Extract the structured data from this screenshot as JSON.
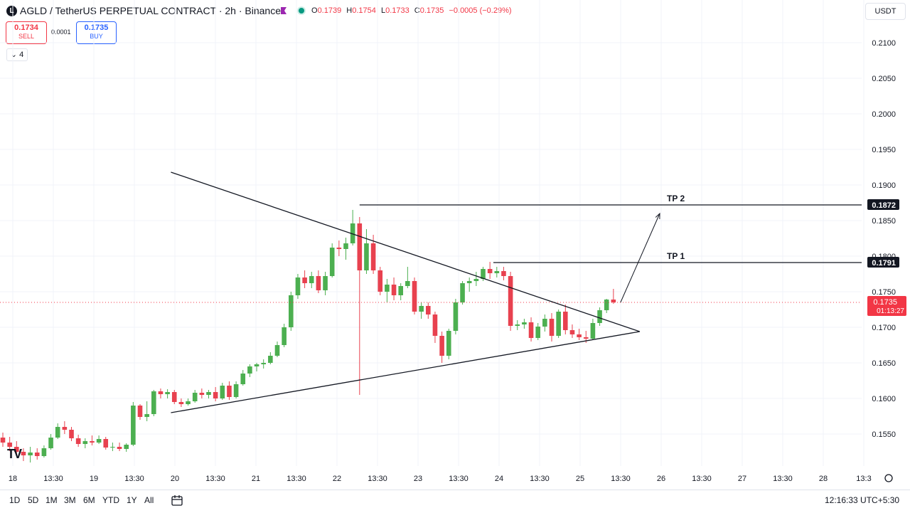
{
  "header": {
    "logo_letter": "L",
    "title": "AGLD / TetherUS PERPETUAL CONTRACT · 2h · Binance",
    "ohlc": [
      {
        "k": "O",
        "v": "0.1739"
      },
      {
        "k": "H",
        "v": "0.1754"
      },
      {
        "k": "L",
        "v": "0.1733"
      },
      {
        "k": "C",
        "v": "0.1735"
      },
      {
        "k": "",
        "v": "−0.0005 (−0.29%)"
      }
    ],
    "currency": "USDT"
  },
  "trade": {
    "sell_price": "0.1734",
    "sell_label": "SELL",
    "spread": "0.0001",
    "buy_price": "0.1735",
    "buy_label": "BUY"
  },
  "indicator_toggle": "4",
  "bottom": {
    "ranges": [
      "1D",
      "5D",
      "1M",
      "3M",
      "6M",
      "YTD",
      "1Y",
      "All"
    ],
    "clock": "12:16:33 UTC+5:30"
  },
  "colors": {
    "up": "#4caf50",
    "down": "#e8414f",
    "price_label": "#f23645",
    "text": "#131722",
    "grid": "#f0f3fa"
  },
  "chart_data": {
    "type": "candlestick",
    "symbol": "AGLD / TetherUS PERPETUAL CONTRACT",
    "interval": "2h",
    "exchange": "Binance",
    "y_ticks": [
      "0.1550",
      "0.1600",
      "0.1650",
      "0.1700",
      "0.1750",
      "0.1800",
      "0.1850",
      "0.1900",
      "0.1950",
      "0.2000",
      "0.2050",
      "0.2100"
    ],
    "x_tick_labels": [
      "18",
      "13:30",
      "19",
      "13:30",
      "20",
      "13:30",
      "21",
      "13:30",
      "22",
      "13:30",
      "23",
      "13:30",
      "24",
      "13:30",
      "25",
      "13:30",
      "26",
      "13:30",
      "27",
      "13:30",
      "28",
      "13:3"
    ],
    "ylim": [
      0.1505,
      0.2125
    ],
    "candles": [
      [
        0.1545,
        0.1552,
        0.1532,
        0.1538
      ],
      [
        0.1538,
        0.1546,
        0.1526,
        0.1532
      ],
      [
        0.1532,
        0.154,
        0.152,
        0.1525
      ],
      [
        0.1525,
        0.153,
        0.1512,
        0.152
      ],
      [
        0.152,
        0.1532,
        0.151,
        0.1524
      ],
      [
        0.1524,
        0.153,
        0.1514,
        0.1519
      ],
      [
        0.1519,
        0.1534,
        0.1517,
        0.153
      ],
      [
        0.153,
        0.155,
        0.1528,
        0.1545
      ],
      [
        0.1545,
        0.1565,
        0.1543,
        0.156
      ],
      [
        0.156,
        0.1568,
        0.155,
        0.1556
      ],
      [
        0.1556,
        0.156,
        0.154,
        0.1544
      ],
      [
        0.1544,
        0.1549,
        0.1532,
        0.1536
      ],
      [
        0.1536,
        0.1544,
        0.153,
        0.154
      ],
      [
        0.154,
        0.1548,
        0.1534,
        0.1538
      ],
      [
        0.1538,
        0.1548,
        0.1536,
        0.1543
      ],
      [
        0.1543,
        0.1546,
        0.1528,
        0.1531
      ],
      [
        0.1531,
        0.1538,
        0.1526,
        0.1532
      ],
      [
        0.1532,
        0.1538,
        0.1526,
        0.1529
      ],
      [
        0.1529,
        0.1537,
        0.1525,
        0.1535
      ],
      [
        0.1535,
        0.1595,
        0.1533,
        0.159
      ],
      [
        0.159,
        0.1592,
        0.157,
        0.1574
      ],
      [
        0.1574,
        0.1596,
        0.1568,
        0.1578
      ],
      [
        0.1578,
        0.1612,
        0.1575,
        0.161
      ],
      [
        0.161,
        0.1614,
        0.16,
        0.1606
      ],
      [
        0.1606,
        0.1613,
        0.16,
        0.1609
      ],
      [
        0.1609,
        0.1612,
        0.1592,
        0.1595
      ],
      [
        0.1595,
        0.16,
        0.1588,
        0.1592
      ],
      [
        0.1592,
        0.16,
        0.159,
        0.1596
      ],
      [
        0.1596,
        0.1612,
        0.1594,
        0.1608
      ],
      [
        0.1608,
        0.1614,
        0.16,
        0.1605
      ],
      [
        0.1605,
        0.1612,
        0.16,
        0.1609
      ],
      [
        0.1609,
        0.1616,
        0.1596,
        0.16
      ],
      [
        0.16,
        0.1622,
        0.1598,
        0.1618
      ],
      [
        0.1618,
        0.1624,
        0.1598,
        0.1602
      ],
      [
        0.1602,
        0.1624,
        0.16,
        0.162
      ],
      [
        0.162,
        0.164,
        0.1618,
        0.1635
      ],
      [
        0.1635,
        0.1648,
        0.163,
        0.1645
      ],
      [
        0.1645,
        0.165,
        0.1638,
        0.1648
      ],
      [
        0.1648,
        0.1655,
        0.1642,
        0.165
      ],
      [
        0.165,
        0.1665,
        0.1648,
        0.166
      ],
      [
        0.166,
        0.168,
        0.1658,
        0.1675
      ],
      [
        0.1675,
        0.1705,
        0.1672,
        0.17
      ],
      [
        0.17,
        0.175,
        0.1695,
        0.1745
      ],
      [
        0.1745,
        0.1775,
        0.174,
        0.177
      ],
      [
        0.177,
        0.178,
        0.1755,
        0.1762
      ],
      [
        0.1762,
        0.1778,
        0.1755,
        0.1772
      ],
      [
        0.1772,
        0.178,
        0.1748,
        0.1752
      ],
      [
        0.1752,
        0.1778,
        0.1745,
        0.1772
      ],
      [
        0.1772,
        0.1818,
        0.177,
        0.1812
      ],
      [
        0.1812,
        0.1822,
        0.18,
        0.181
      ],
      [
        0.181,
        0.1826,
        0.1795,
        0.1818
      ],
      [
        0.1818,
        0.1865,
        0.1815,
        0.1846
      ],
      [
        0.1846,
        0.1855,
        0.1605,
        0.178
      ],
      [
        0.178,
        0.1838,
        0.1775,
        0.1818
      ],
      [
        0.1818,
        0.183,
        0.1775,
        0.178
      ],
      [
        0.178,
        0.1785,
        0.1745,
        0.175
      ],
      [
        0.175,
        0.1768,
        0.1735,
        0.176
      ],
      [
        0.176,
        0.177,
        0.1738,
        0.1745
      ],
      [
        0.1745,
        0.1762,
        0.1738,
        0.1758
      ],
      [
        0.1758,
        0.1785,
        0.1755,
        0.1765
      ],
      [
        0.1765,
        0.177,
        0.1718,
        0.1722
      ],
      [
        0.1722,
        0.1735,
        0.1712,
        0.173
      ],
      [
        0.173,
        0.1735,
        0.1712,
        0.1718
      ],
      [
        0.1718,
        0.1722,
        0.1678,
        0.1688
      ],
      [
        0.1688,
        0.1694,
        0.165,
        0.166
      ],
      [
        0.166,
        0.1698,
        0.1655,
        0.1695
      ],
      [
        0.1695,
        0.174,
        0.169,
        0.1735
      ],
      [
        0.1735,
        0.1765,
        0.1732,
        0.1762
      ],
      [
        0.1762,
        0.177,
        0.175,
        0.1765
      ],
      [
        0.1765,
        0.1778,
        0.1758,
        0.1768
      ],
      [
        0.1768,
        0.1785,
        0.1765,
        0.1782
      ],
      [
        0.1782,
        0.1792,
        0.1768,
        0.1776
      ],
      [
        0.1776,
        0.1785,
        0.177,
        0.1779
      ],
      [
        0.1779,
        0.1785,
        0.1766,
        0.1772
      ],
      [
        0.1772,
        0.1778,
        0.1695,
        0.1702
      ],
      [
        0.1702,
        0.171,
        0.1696,
        0.1704
      ],
      [
        0.1704,
        0.1712,
        0.1698,
        0.1707
      ],
      [
        0.1707,
        0.1714,
        0.168,
        0.1685
      ],
      [
        0.1685,
        0.1706,
        0.1682,
        0.1701
      ],
      [
        0.1701,
        0.1718,
        0.1694,
        0.1712
      ],
      [
        0.1712,
        0.172,
        0.168,
        0.1688
      ],
      [
        0.1688,
        0.1725,
        0.1685,
        0.1722
      ],
      [
        0.1722,
        0.1732,
        0.169,
        0.1696
      ],
      [
        0.1696,
        0.1704,
        0.1685,
        0.169
      ],
      [
        0.169,
        0.1698,
        0.1682,
        0.1686
      ],
      [
        0.1686,
        0.1695,
        0.1678,
        0.1684
      ],
      [
        0.1684,
        0.1712,
        0.1682,
        0.1706
      ],
      [
        0.1706,
        0.1728,
        0.1702,
        0.1724
      ],
      [
        0.1724,
        0.174,
        0.172,
        0.1739
      ],
      [
        0.1739,
        0.1754,
        0.1733,
        0.1735
      ]
    ],
    "current_price": "0.1735",
    "countdown": "01:13:27",
    "annotations": [
      {
        "label": "TP 2",
        "price": 0.1872,
        "price_label": "0.1872",
        "kind": "horizontal"
      },
      {
        "label": "TP 1",
        "price": 0.1791,
        "price_label": "0.1791",
        "kind": "horizontal"
      }
    ],
    "pattern": "symmetrical triangle",
    "grid": true
  }
}
